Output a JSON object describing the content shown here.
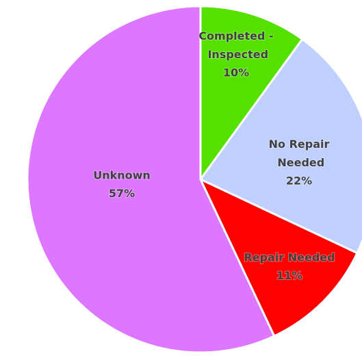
{
  "chart_data": {
    "type": "pie",
    "categories": [
      "Completed - Inspected",
      "No Repair Needed",
      "Repair Needed",
      "Unknown"
    ],
    "values": [
      10,
      22,
      11,
      57
    ],
    "value_labels": [
      "10%",
      "22%",
      "11%",
      "57%"
    ],
    "colors": [
      "#55e000",
      "#bfd0ff",
      "#ff0000",
      "#dd77ff"
    ]
  }
}
